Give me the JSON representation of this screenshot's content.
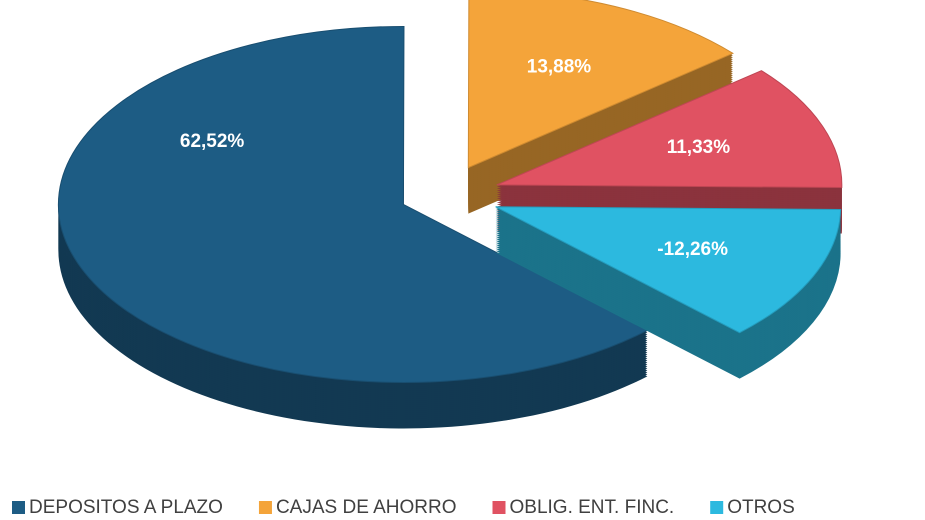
{
  "chart_data": {
    "type": "pie",
    "categories": [
      "DEPOSITOS A PLAZO",
      "CAJAS DE AHORRO",
      "OBLIG. ENT. FINC.",
      "OTROS"
    ],
    "values": [
      62.52,
      13.88,
      11.33,
      -12.26
    ],
    "value_labels": [
      "62,52%",
      "13,88%",
      "11,33%",
      "-12,26%"
    ],
    "colors": [
      "#1d5c84",
      "#f4a43a",
      "#e05262",
      "#2cb9df"
    ],
    "legend": "bottom"
  }
}
